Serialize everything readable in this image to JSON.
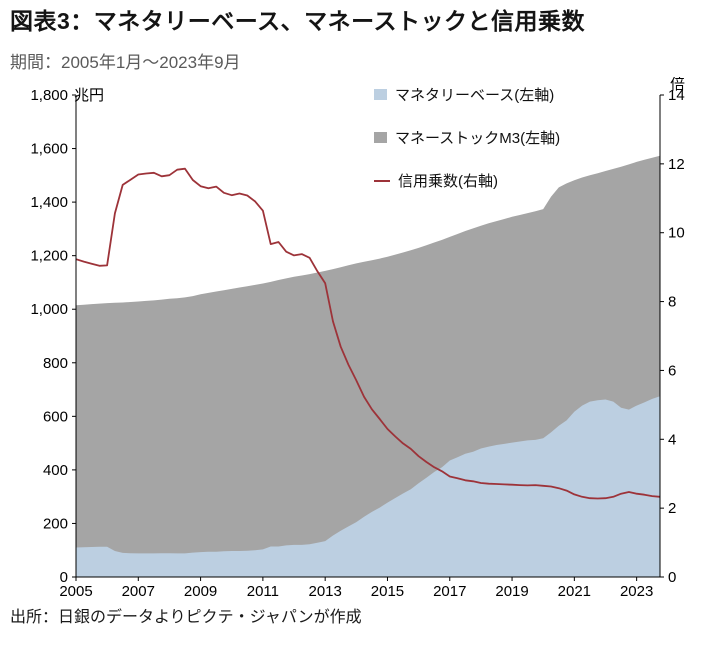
{
  "chart_data": {
    "type": "area+line",
    "title": "図表3：マネタリーベース、マネーストックと信用乗数",
    "subtitle": "期間：2005年1月～2023年9月",
    "source": "出所：日銀のデータよりピクテ・ジャパンが作成",
    "legend_position": "top-center-inside",
    "background": "#ffffff",
    "axis_color": "#000000",
    "x_axis": {
      "min": 2005,
      "max": 2023.75,
      "tick_values": [
        2005,
        2007,
        2009,
        2011,
        2013,
        2015,
        2017,
        2019,
        2021,
        2023
      ],
      "tick_labels": [
        "2005",
        "2007",
        "2009",
        "2011",
        "2013",
        "2015",
        "2017",
        "2019",
        "2021",
        "2023"
      ]
    },
    "left_axis": {
      "unit": "兆円",
      "min": 0,
      "max": 1800,
      "tick_values": [
        0,
        200,
        400,
        600,
        800,
        1000,
        1200,
        1400,
        1600,
        1800
      ],
      "tick_labels": [
        "0",
        "200",
        "400",
        "600",
        "800",
        "1,000",
        "1,200",
        "1,400",
        "1,600",
        "1,800"
      ]
    },
    "right_axis": {
      "unit": "倍",
      "min": 0,
      "max": 14,
      "tick_values": [
        0,
        2,
        4,
        6,
        8,
        10,
        12,
        14
      ],
      "tick_labels": [
        "0",
        "2",
        "4",
        "6",
        "8",
        "10",
        "12",
        "14"
      ]
    },
    "x": [
      2005,
      2005.25,
      2005.5,
      2005.75,
      2006,
      2006.25,
      2006.5,
      2006.75,
      2007,
      2007.25,
      2007.5,
      2007.75,
      2008,
      2008.25,
      2008.5,
      2008.75,
      2009,
      2009.25,
      2009.5,
      2009.75,
      2010,
      2010.25,
      2010.5,
      2010.75,
      2011,
      2011.25,
      2011.5,
      2011.75,
      2012,
      2012.25,
      2012.5,
      2012.75,
      2013,
      2013.25,
      2013.5,
      2013.75,
      2014,
      2014.25,
      2014.5,
      2014.75,
      2015,
      2015.25,
      2015.5,
      2015.75,
      2016,
      2016.25,
      2016.5,
      2016.75,
      2017,
      2017.25,
      2017.5,
      2017.75,
      2018,
      2018.25,
      2018.5,
      2018.75,
      2019,
      2019.25,
      2019.5,
      2019.75,
      2020,
      2020.25,
      2020.5,
      2020.75,
      2021,
      2021.25,
      2021.5,
      2021.75,
      2022,
      2022.25,
      2022.5,
      2022.75,
      2023,
      2023.25,
      2023.5,
      2023.75
    ],
    "series": [
      {
        "name": "マネタリーベース(左軸)",
        "slug": "monetary-base-area",
        "type": "area",
        "axis": "left",
        "color": "#bccfe1",
        "values": [
          110,
          111,
          112,
          113,
          113,
          97,
          90,
          89,
          88,
          88,
          88,
          89,
          89,
          88,
          88,
          91,
          93,
          94,
          94,
          96,
          97,
          97,
          98,
          100,
          103,
          114,
          114,
          118,
          120,
          120,
          122,
          128,
          134,
          155,
          173,
          189,
          205,
          225,
          243,
          259,
          278,
          295,
          312,
          328,
          350,
          371,
          392,
          410,
          435,
          447,
          460,
          468,
          480,
          487,
          493,
          497,
          502,
          506,
          510,
          512,
          518,
          540,
          565,
          585,
          617,
          640,
          655,
          660,
          663,
          655,
          632,
          625,
          640,
          652,
          665,
          675
        ]
      },
      {
        "name": "マネーストックM3(左軸)",
        "slug": "money-stock-m3-area",
        "type": "area",
        "axis": "left",
        "color": "#a5a5a5",
        "values": [
          1015,
          1017,
          1019,
          1021,
          1023,
          1024,
          1025,
          1027,
          1029,
          1031,
          1033,
          1036,
          1039,
          1041,
          1044,
          1049,
          1056,
          1061,
          1066,
          1071,
          1076,
          1081,
          1086,
          1091,
          1096,
          1102,
          1109,
          1115,
          1121,
          1126,
          1131,
          1137,
          1143,
          1150,
          1157,
          1164,
          1171,
          1177,
          1183,
          1189,
          1196,
          1204,
          1212,
          1220,
          1229,
          1239,
          1249,
          1259,
          1270,
          1281,
          1292,
          1302,
          1312,
          1321,
          1329,
          1337,
          1345,
          1352,
          1359,
          1366,
          1374,
          1420,
          1455,
          1470,
          1482,
          1492,
          1500,
          1508,
          1516,
          1524,
          1532,
          1541,
          1550,
          1558,
          1566,
          1573
        ]
      },
      {
        "name": "信用乗数(右軸)",
        "slug": "credit-multiplier-line",
        "type": "line",
        "axis": "right",
        "color": "#9d3339",
        "values": [
          9.23,
          9.16,
          9.1,
          9.04,
          9.05,
          10.56,
          11.39,
          11.54,
          11.69,
          11.72,
          11.74,
          11.64,
          11.67,
          11.83,
          11.86,
          11.53,
          11.35,
          11.29,
          11.34,
          11.16,
          11.09,
          11.14,
          11.08,
          10.91,
          10.64,
          9.67,
          9.73,
          9.45,
          9.34,
          9.38,
          9.27,
          8.88,
          8.53,
          7.42,
          6.69,
          6.16,
          5.71,
          5.23,
          4.87,
          4.59,
          4.3,
          4.08,
          3.88,
          3.72,
          3.51,
          3.34,
          3.19,
          3.07,
          2.92,
          2.87,
          2.81,
          2.78,
          2.73,
          2.71,
          2.7,
          2.69,
          2.68,
          2.67,
          2.66,
          2.67,
          2.65,
          2.63,
          2.58,
          2.51,
          2.4,
          2.33,
          2.29,
          2.28,
          2.29,
          2.33,
          2.42,
          2.47,
          2.42,
          2.39,
          2.35,
          2.33
        ]
      }
    ],
    "draw_order": [
      1,
      0,
      2
    ]
  }
}
